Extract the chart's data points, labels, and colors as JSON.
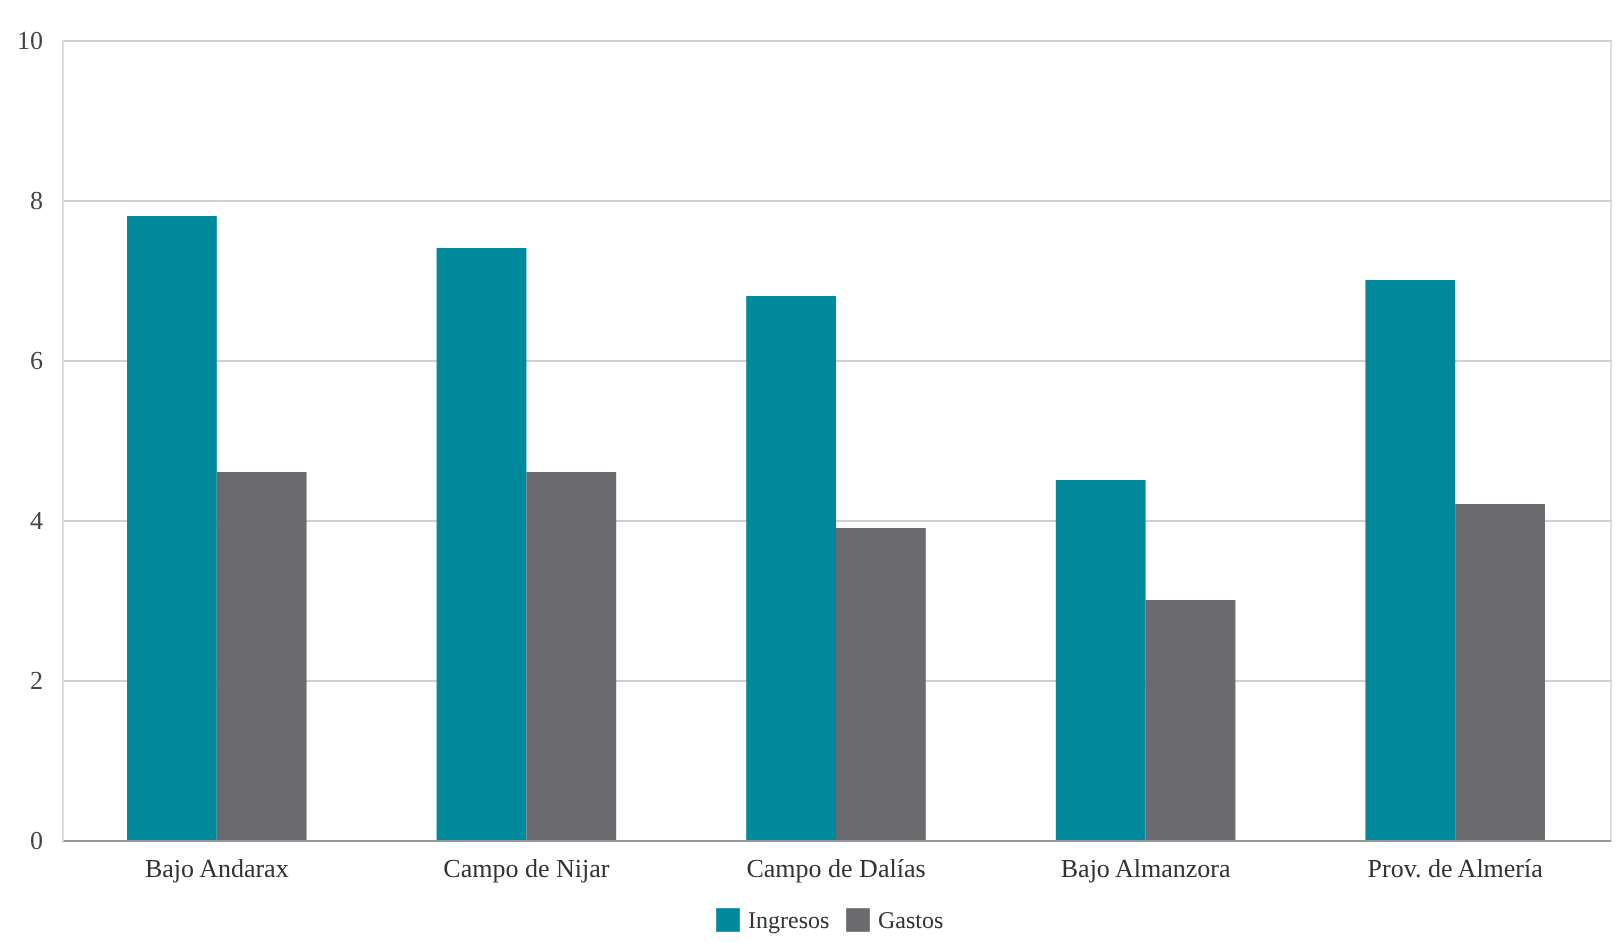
{
  "chart_data": {
    "type": "bar",
    "categories": [
      "Bajo Andarax",
      "Campo de Nijar",
      "Campo de Dalías",
      "Bajo Almanzora",
      "Prov. de Almería"
    ],
    "series": [
      {
        "name": "Ingresos",
        "color": "#00899a",
        "values": [
          7.8,
          7.4,
          6.8,
          4.5,
          7.0
        ]
      },
      {
        "name": "Gastos",
        "color": "#6b6a6e",
        "values": [
          4.6,
          4.6,
          3.9,
          3.0,
          4.2
        ]
      }
    ],
    "ylim": [
      0,
      10
    ],
    "yticks": [
      0,
      2,
      4,
      6,
      8,
      10
    ],
    "grid": "y",
    "legend": "bottom"
  }
}
